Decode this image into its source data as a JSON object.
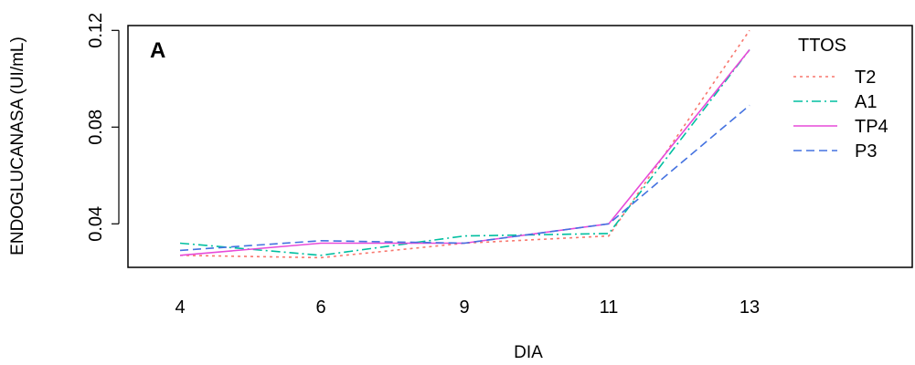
{
  "chart_data": {
    "type": "line",
    "panel_label": "A",
    "xlabel": "DIA",
    "ylabel": "ENDOGLUCANASA (UI/mL)",
    "categories": [
      "4",
      "6",
      "9",
      "11",
      "13"
    ],
    "yticks": [
      "0.04",
      "0.08",
      "0.12"
    ],
    "ylim": [
      0.022,
      0.122
    ],
    "grid": false,
    "legend": {
      "title": "TTOS",
      "placement": "top-right"
    },
    "series": [
      {
        "name": "T2",
        "values": [
          0.027,
          0.026,
          0.032,
          0.035,
          0.12
        ],
        "color": "#f8766d",
        "dash": "3,4"
      },
      {
        "name": "A1",
        "values": [
          0.032,
          0.027,
          0.035,
          0.036,
          0.112
        ],
        "color": "#00bfa0",
        "dash": "10,4,2,4"
      },
      {
        "name": "TP4",
        "values": [
          0.027,
          0.032,
          0.032,
          0.04,
          0.112
        ],
        "color": "#e74ad9",
        "dash": ""
      },
      {
        "name": "P3",
        "values": [
          0.029,
          0.033,
          0.032,
          0.04,
          0.089
        ],
        "color": "#4472e0",
        "dash": "9,5"
      }
    ]
  }
}
